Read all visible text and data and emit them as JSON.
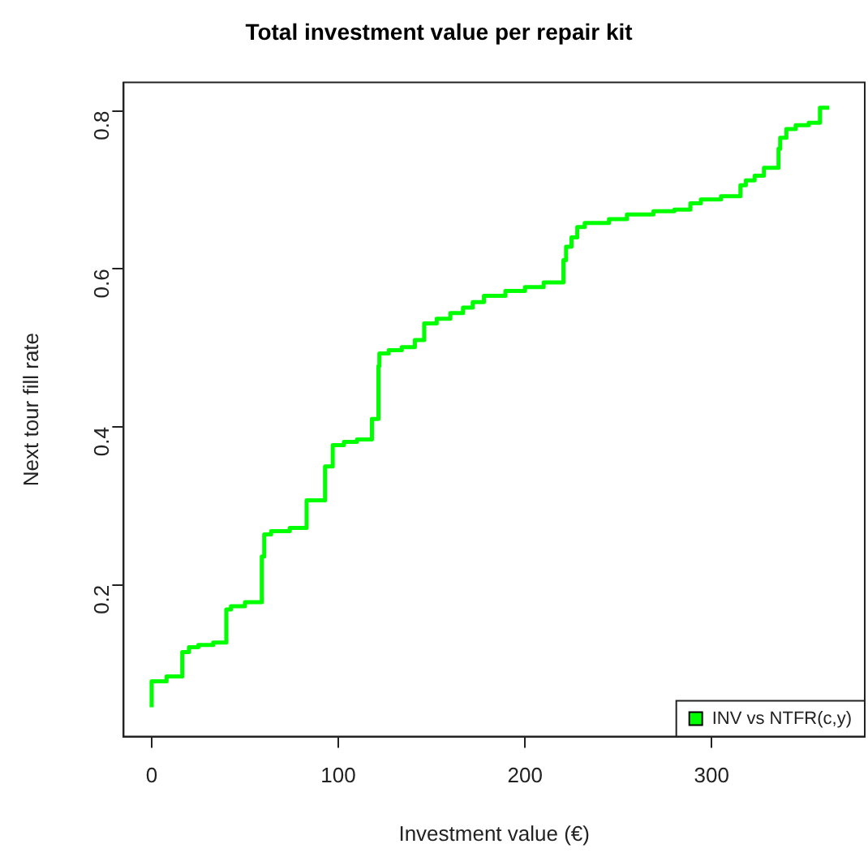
{
  "chart_data": {
    "type": "step",
    "title": "Total investment value per repair kit",
    "xlabel": "Investment value (€)",
    "ylabel": "Next tour fill rate",
    "x": [
      0,
      0,
      8,
      16.4,
      16.4,
      20,
      25,
      33,
      40,
      40,
      42.5,
      50,
      59,
      59,
      60.3,
      64,
      74,
      83,
      83,
      92.9,
      92.9,
      97,
      103,
      110,
      118,
      118,
      121.5,
      122,
      127,
      134,
      141,
      146,
      152.7,
      160,
      166.8,
      172,
      178,
      189.5,
      200,
      210,
      220.6,
      222,
      224.9,
      228,
      232,
      245,
      254.6,
      268.8,
      280,
      288.6,
      294.2,
      305,
      315.4,
      318.3,
      323,
      328,
      335.8,
      336.7,
      340,
      345,
      352,
      358,
      358.8,
      363
    ],
    "series": [
      {
        "name": "INV vs NTFR(c,y)",
        "color": "#00ff00",
        "values": [
          0.045,
          0.071,
          0.078,
          0.084,
          0.107,
          0.115,
          0.121,
          0.124,
          0.127,
          0.149,
          0.169,
          0.173,
          0.178,
          0.216,
          0.236,
          0.264,
          0.268,
          0.272,
          0.3,
          0.307,
          0.329,
          0.35,
          0.377,
          0.381,
          0.384,
          0.4,
          0.41,
          0.477,
          0.493,
          0.497,
          0.501,
          0.51,
          0.531,
          0.537,
          0.544,
          0.551,
          0.558,
          0.566,
          0.572,
          0.577,
          0.583,
          0.611,
          0.628,
          0.64,
          0.653,
          0.658,
          0.663,
          0.669,
          0.673,
          0.675,
          0.683,
          0.688,
          0.692,
          0.706,
          0.712,
          0.718,
          0.728,
          0.752,
          0.766,
          0.777,
          0.782,
          0.785,
          0.804,
          0.804
        ]
      }
    ],
    "xlim": [
      -15,
      382
    ],
    "ylim": [
      0.008,
      0.836
    ],
    "xticks": [
      0,
      100,
      200,
      300
    ],
    "yticks": [
      0.2,
      0.4,
      0.6,
      0.8
    ],
    "legend": "bottom right"
  }
}
